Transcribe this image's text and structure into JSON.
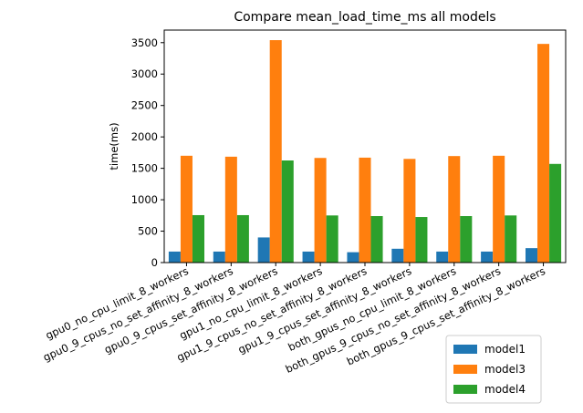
{
  "chart_data": {
    "type": "bar",
    "title": "Compare mean_load_time_ms all models",
    "xlabel": "",
    "ylabel": "time(ms)",
    "ylim": [
      0,
      3700
    ],
    "yticks": [
      0,
      500,
      1000,
      1500,
      2000,
      2500,
      3000,
      3500
    ],
    "grid": false,
    "legend_position": "lower-right",
    "categories": [
      "gpu0_no_cpu_limit_8_workers",
      "gpu0_9_cpus_no_set_affinity_8_workers",
      "gpu0_9_cpus_set_affinity_8_workers",
      "gpu1_no_cpu_limit_8_workers",
      "gpu1_9_cpus_no_set_affinity_8_workers",
      "gpu1_9_cpus_set_affinity_8_workers",
      "both_gpus_no_cpu_limit_8_workers",
      "both_gpus_9_cpus_no_set_affinity_8_workers",
      "both_gpus_9_cpus_set_affinity_8_workers"
    ],
    "series": [
      {
        "name": "model1",
        "color": "#1f77b4",
        "values": [
          175,
          175,
          400,
          175,
          165,
          220,
          175,
          175,
          230
        ]
      },
      {
        "name": "model3",
        "color": "#ff7f0e",
        "values": [
          1700,
          1685,
          3540,
          1665,
          1670,
          1650,
          1695,
          1700,
          3480
        ]
      },
      {
        "name": "model4",
        "color": "#2ca02c",
        "values": [
          755,
          755,
          1625,
          750,
          740,
          725,
          740,
          750,
          1570
        ]
      }
    ]
  }
}
